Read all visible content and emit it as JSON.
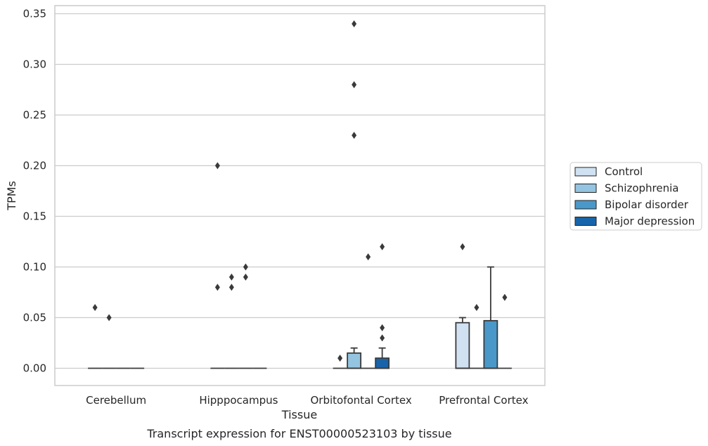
{
  "chart_data": {
    "type": "box",
    "title": "",
    "caption": "Transcript expression for ENST00000523103 by tissue",
    "xlabel": "Tissue",
    "ylabel": "TPMs",
    "ylim": [
      -0.017,
      0.358
    ],
    "yticks": [
      0.0,
      0.05,
      0.1,
      0.15,
      0.2,
      0.25,
      0.3,
      0.35
    ],
    "ytick_labels": [
      "0.00",
      "0.05",
      "0.10",
      "0.15",
      "0.20",
      "0.25",
      "0.30",
      "0.35"
    ],
    "grid": true,
    "legend_position": "right",
    "categories": [
      "Cerebellum",
      "Hipppocampus",
      "Orbitofontal Cortex",
      "Prefrontal Cortex"
    ],
    "series": [
      {
        "name": "Control",
        "color": "#d0e1f2",
        "boxes": [
          {
            "q1": 0,
            "median": 0,
            "q3": 0,
            "whisker_low": 0,
            "whisker_high": 0,
            "outliers": [
              0.06
            ]
          },
          {
            "q1": 0,
            "median": 0,
            "q3": 0,
            "whisker_low": 0,
            "whisker_high": 0,
            "outliers": [
              0.2,
              0.08
            ]
          },
          {
            "q1": 0,
            "median": 0,
            "q3": 0,
            "whisker_low": 0,
            "whisker_high": 0,
            "outliers": [
              0.01
            ]
          },
          {
            "q1": 0,
            "median": 0,
            "q3": 0.045,
            "whisker_low": 0,
            "whisker_high": 0.05,
            "outliers": [
              0.12
            ]
          }
        ]
      },
      {
        "name": "Schizophrenia",
        "color": "#94c4df",
        "boxes": [
          {
            "q1": 0,
            "median": 0,
            "q3": 0,
            "whisker_low": 0,
            "whisker_high": 0,
            "outliers": [
              0.05
            ]
          },
          {
            "q1": 0,
            "median": 0,
            "q3": 0,
            "whisker_low": 0,
            "whisker_high": 0,
            "outliers": [
              0.09,
              0.08
            ]
          },
          {
            "q1": 0,
            "median": 0,
            "q3": 0.015,
            "whisker_low": 0,
            "whisker_high": 0.02,
            "outliers": [
              0.34,
              0.28,
              0.23
            ]
          },
          {
            "q1": 0,
            "median": 0,
            "q3": 0,
            "whisker_low": 0,
            "whisker_high": 0,
            "outliers": [
              0.06
            ]
          }
        ]
      },
      {
        "name": "Bipolar disorder",
        "color": "#4a98c9",
        "boxes": [
          {
            "q1": 0,
            "median": 0,
            "q3": 0,
            "whisker_low": 0,
            "whisker_high": 0,
            "outliers": []
          },
          {
            "q1": 0,
            "median": 0,
            "q3": 0,
            "whisker_low": 0,
            "whisker_high": 0,
            "outliers": [
              0.1,
              0.09
            ]
          },
          {
            "q1": 0,
            "median": 0,
            "q3": 0,
            "whisker_low": 0,
            "whisker_high": 0,
            "outliers": [
              0.11
            ]
          },
          {
            "q1": 0,
            "median": 0,
            "q3": 0.047,
            "whisker_low": 0,
            "whisker_high": 0.1,
            "outliers": []
          }
        ]
      },
      {
        "name": "Major depression",
        "color": "#1764ab",
        "boxes": [
          {
            "q1": 0,
            "median": 0,
            "q3": 0,
            "whisker_low": 0,
            "whisker_high": 0,
            "outliers": []
          },
          {
            "q1": 0,
            "median": 0,
            "q3": 0,
            "whisker_low": 0,
            "whisker_high": 0,
            "outliers": []
          },
          {
            "q1": 0,
            "median": 0,
            "q3": 0.01,
            "whisker_low": 0,
            "whisker_high": 0.02,
            "outliers": [
              0.12,
              0.04,
              0.03
            ]
          },
          {
            "q1": 0,
            "median": 0,
            "q3": 0,
            "whisker_low": 0,
            "whisker_high": 0,
            "outliers": [
              0.07
            ]
          }
        ]
      }
    ]
  }
}
